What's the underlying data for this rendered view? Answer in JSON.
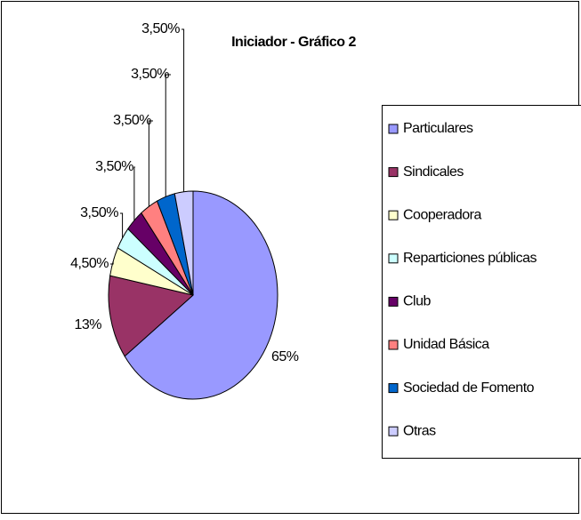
{
  "chart_data": {
    "type": "pie",
    "title": "Iniciador - Gráfico 2",
    "categories": [
      "Particulares",
      "Sindicales",
      "Cooperadora",
      "Reparticiones públicas",
      "Club",
      "Unidad Básica",
      "Sociedad de Fomento",
      "Otras"
    ],
    "values": [
      65,
      13,
      4.5,
      3.5,
      3.5,
      3.5,
      3.5,
      3.5
    ],
    "value_labels": [
      "65%",
      "13%",
      "4,50%",
      "3,50%",
      "3,50%",
      "3,50%",
      "3,50%",
      "3,50%"
    ],
    "colors": [
      "#9999ff",
      "#993366",
      "#ffffcc",
      "#ccffff",
      "#660066",
      "#ff8080",
      "#0066cc",
      "#ccccff"
    ],
    "legend": "right"
  }
}
